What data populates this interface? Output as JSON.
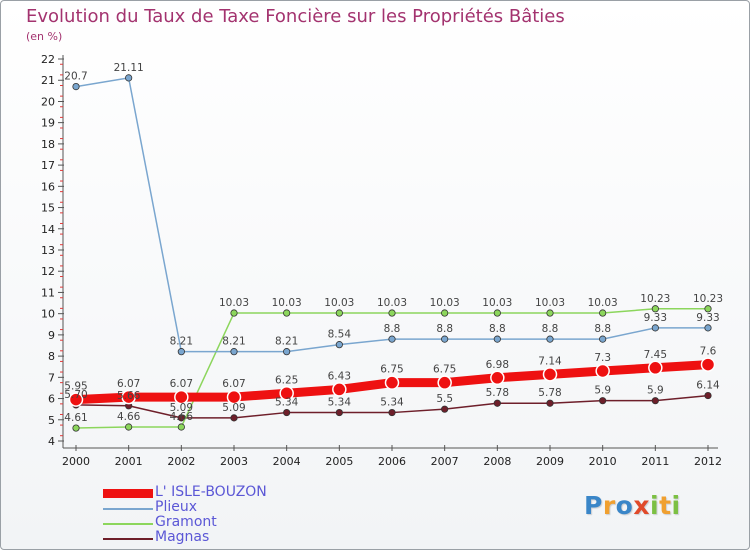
{
  "title": "Evolution du Taux de Taxe Foncière sur les Propriétés Bâties",
  "unit_label": "(en %)",
  "logo": {
    "text": "Proxiti",
    "letters": [
      "P",
      "r",
      "o",
      "x",
      "i",
      "t",
      "i"
    ]
  },
  "chart_data": {
    "type": "line",
    "title": "Evolution du Taux de Taxe Foncière sur les Propriétés Bâties",
    "ylabel": "(en %)",
    "xlabel": "",
    "ylim": [
      4,
      22
    ],
    "yticks": [
      4,
      5,
      6,
      7,
      8,
      9,
      10,
      11,
      12,
      13,
      14,
      15,
      16,
      17,
      18,
      19,
      20,
      21,
      22
    ],
    "categories": [
      "2000",
      "2001",
      "2002",
      "2003",
      "2004",
      "2005",
      "2006",
      "2007",
      "2008",
      "2009",
      "2010",
      "2011",
      "2012"
    ],
    "series": [
      {
        "name": "Magnas",
        "color": "#6e1f2a",
        "values": [
          5.7,
          5.66,
          5.09,
          5.09,
          5.34,
          5.34,
          5.34,
          5.5,
          5.78,
          5.78,
          5.9,
          5.9,
          6.14
        ],
        "labels": [
          "5.70",
          "5.66",
          "5.09",
          "5.09",
          "5.34",
          "5.34",
          "5.34",
          "5.5",
          "5.78",
          "5.78",
          "5.9",
          "5.9",
          "6.14"
        ]
      },
      {
        "name": "Gramont",
        "color": "#8cd65c",
        "values": [
          4.61,
          4.66,
          4.66,
          10.03,
          10.03,
          10.03,
          10.03,
          10.03,
          10.03,
          10.03,
          10.03,
          10.23,
          10.23
        ],
        "labels": [
          "4.61",
          "4.66",
          "4.66",
          "10.03",
          "10.03",
          "10.03",
          "10.03",
          "10.03",
          "10.03",
          "10.03",
          "10.03",
          "10.23",
          "10.23"
        ]
      },
      {
        "name": "Plieux",
        "color": "#7aa6cf",
        "values": [
          20.7,
          21.11,
          8.21,
          8.21,
          8.21,
          8.54,
          8.8,
          8.8,
          8.8,
          8.8,
          8.8,
          9.33,
          9.33
        ],
        "labels": [
          "20.7",
          "21.11",
          "8.21",
          "8.21",
          "8.21",
          "8.54",
          "8.8",
          "8.8",
          "8.8",
          "8.8",
          "8.8",
          "9.33",
          "9.33"
        ]
      },
      {
        "name": "L' ISLE-BOUZON",
        "color": "#ee1111",
        "values": [
          5.95,
          6.07,
          6.07,
          6.07,
          6.25,
          6.43,
          6.75,
          6.75,
          6.98,
          7.14,
          7.3,
          7.45,
          7.6
        ],
        "labels": [
          "5.95",
          "6.07",
          "6.07",
          "6.07",
          "6.25",
          "6.43",
          "6.75",
          "6.75",
          "6.98",
          "7.14",
          "7.3",
          "7.45",
          "7.6"
        ]
      }
    ],
    "legend": [
      "L' ISLE-BOUZON",
      "Plieux",
      "Gramont",
      "Magnas"
    ],
    "legend_position": "bottom-left",
    "grid": false
  }
}
